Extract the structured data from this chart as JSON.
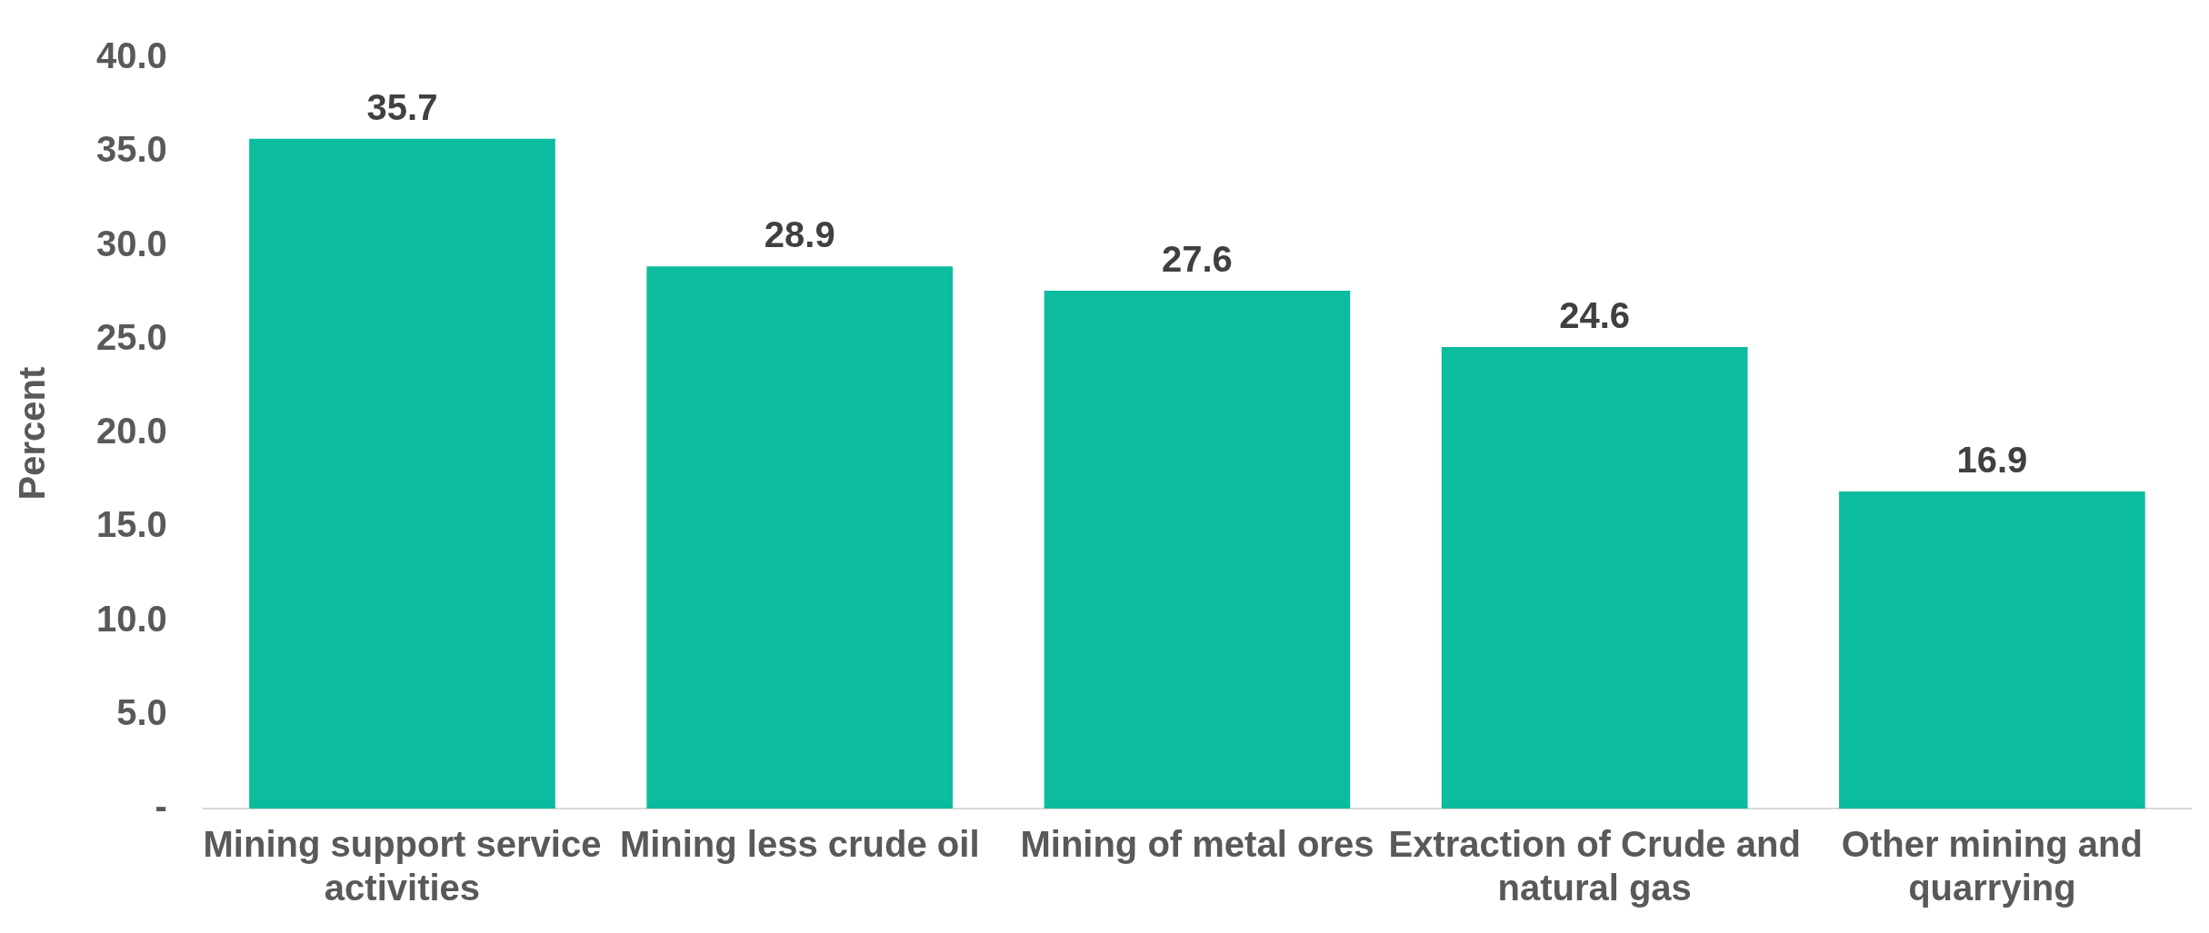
{
  "chart_data": {
    "type": "bar",
    "ylabel": "Percent",
    "categories": [
      "Mining support service activities",
      "Mining less crude oil",
      "Mining of metal ores",
      "Extraction of Crude and natural gas",
      "Other mining and quarrying"
    ],
    "values": [
      35.7,
      28.9,
      27.6,
      24.6,
      16.9
    ],
    "color": "#0bbc9f",
    "ylim": [
      0,
      40
    ],
    "yticks": [
      {
        "value": 0,
        "label": "-"
      },
      {
        "value": 5,
        "label": "5.0"
      },
      {
        "value": 10,
        "label": "10.0"
      },
      {
        "value": 15,
        "label": "15.0"
      },
      {
        "value": 20,
        "label": "20.0"
      },
      {
        "value": 25,
        "label": "25.0"
      },
      {
        "value": 30,
        "label": "30.0"
      },
      {
        "value": 35,
        "label": "35.0"
      },
      {
        "value": 40,
        "label": "40.0"
      }
    ],
    "grid": false,
    "legend": false,
    "data_labels": true
  }
}
